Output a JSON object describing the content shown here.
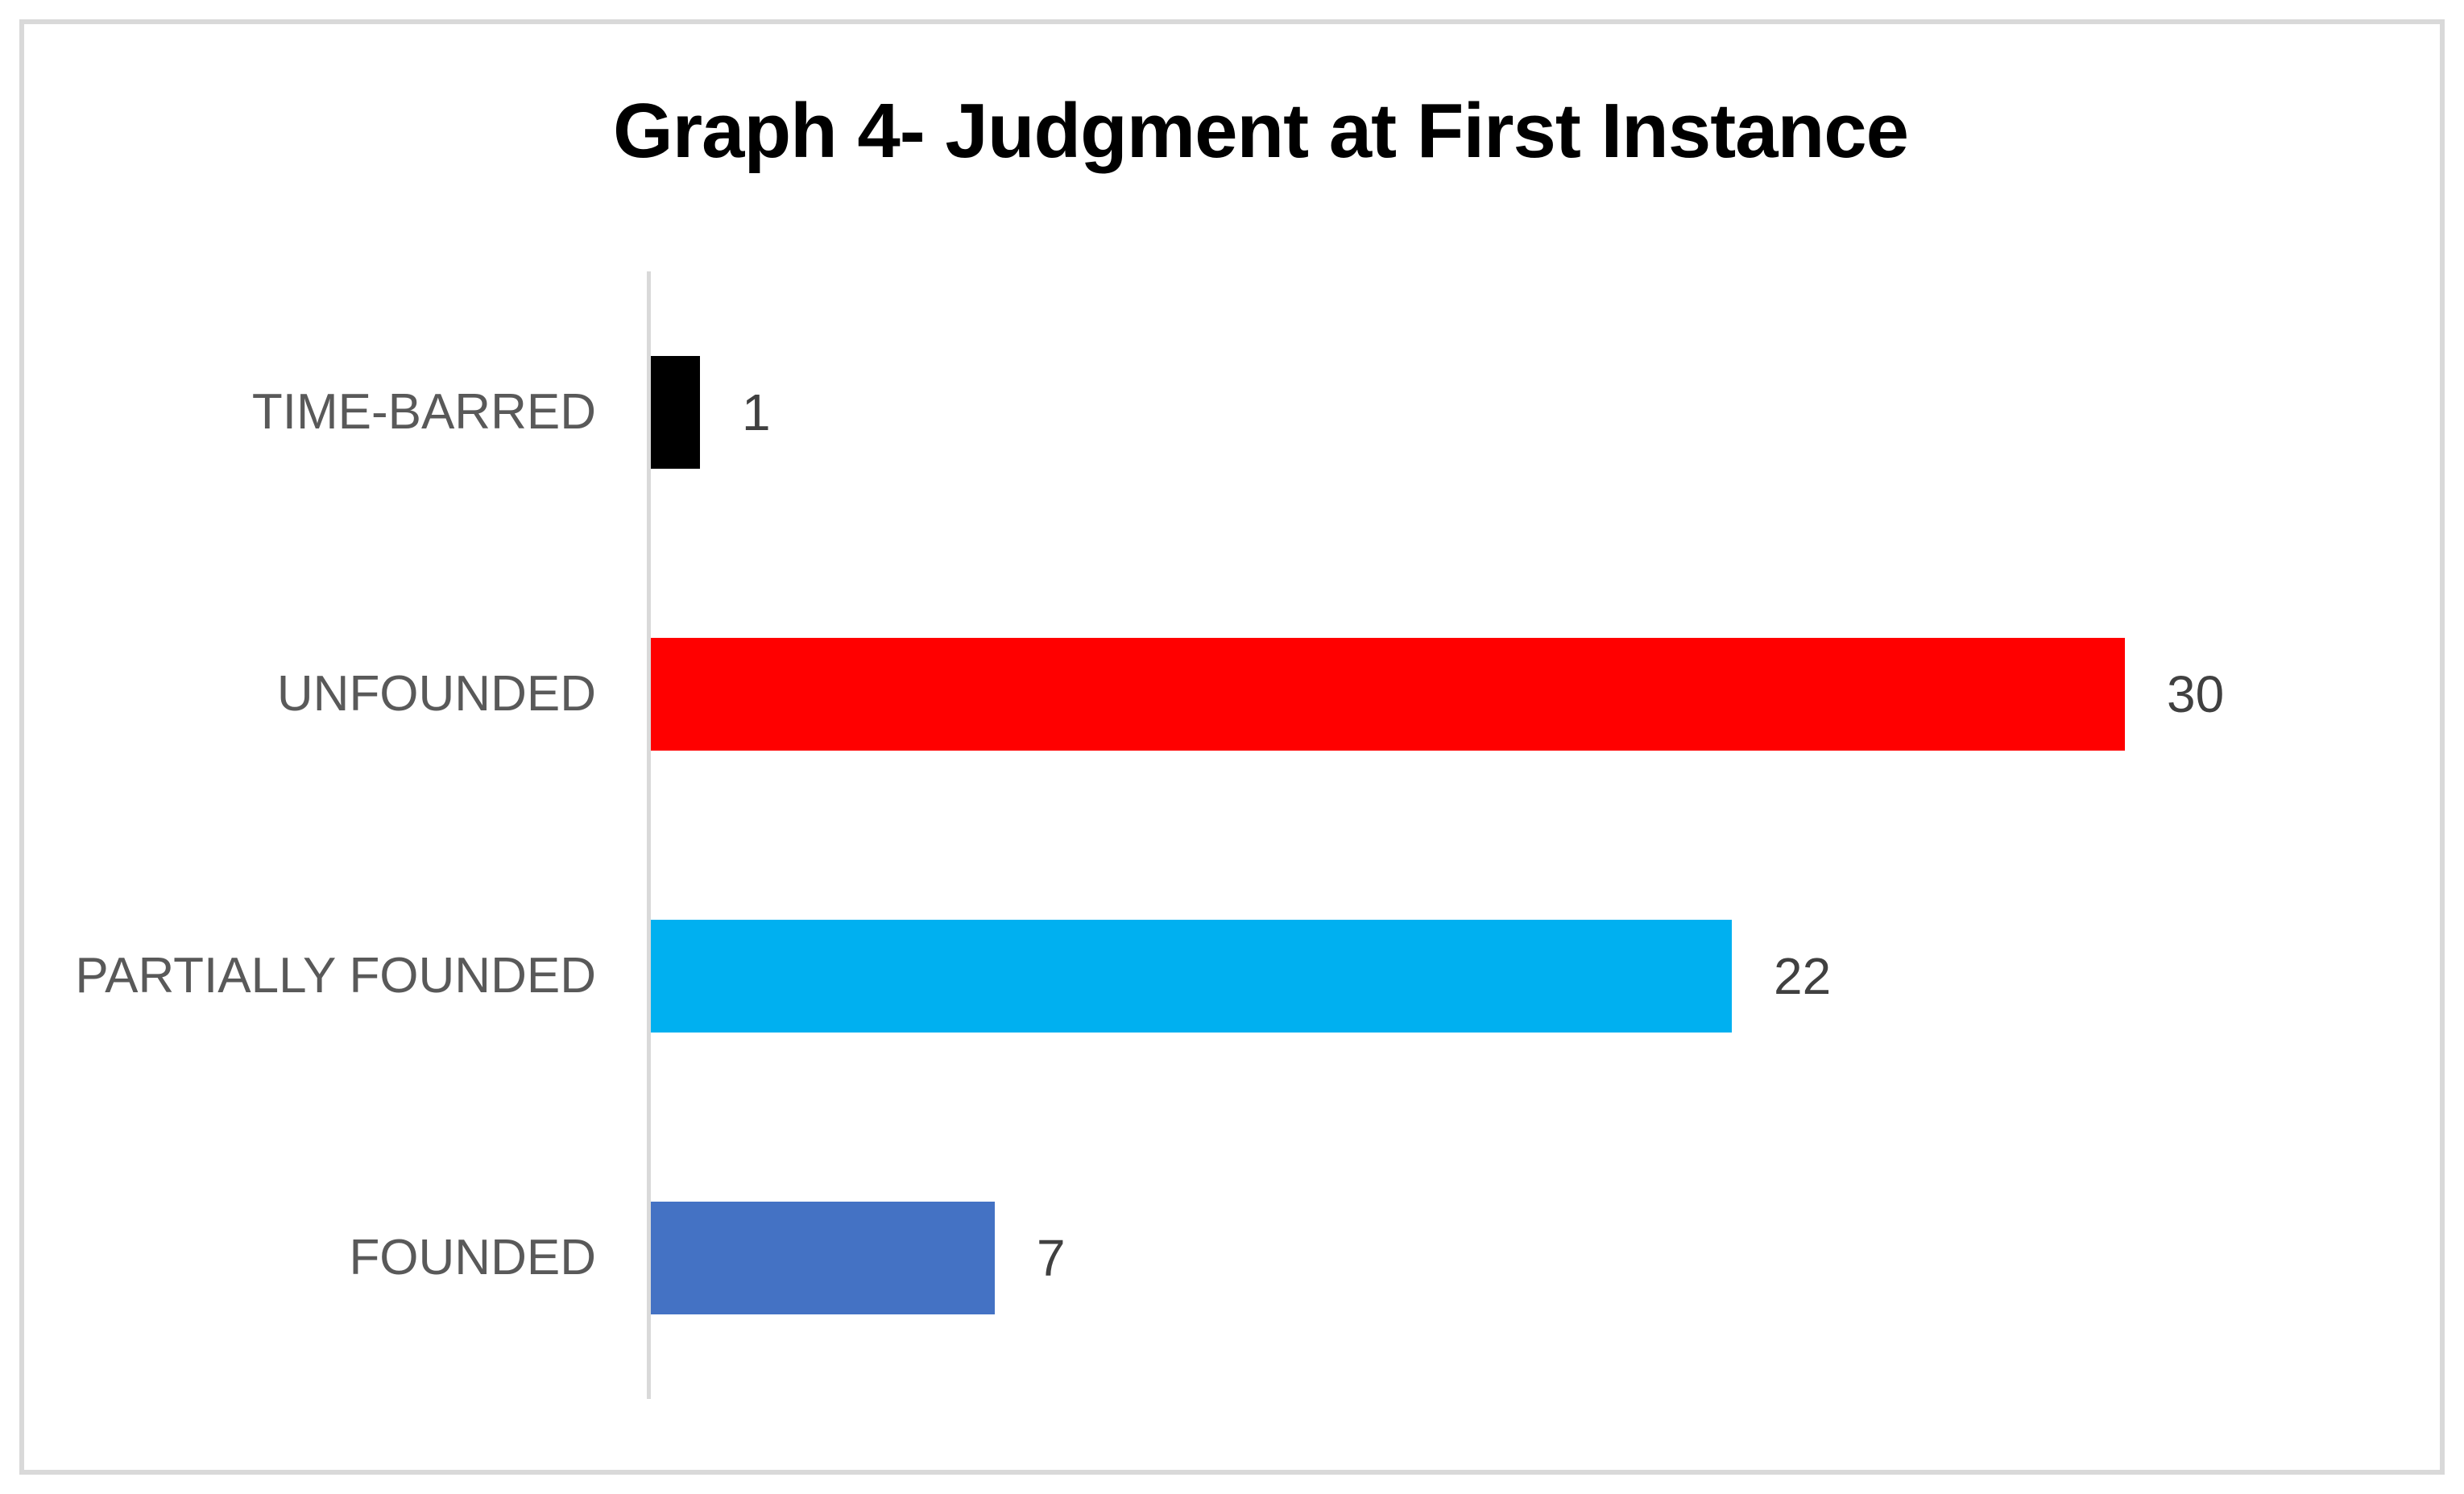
{
  "title": "Graph 4- Judgment at First Instance",
  "chart_data": {
    "type": "bar",
    "orientation": "horizontal",
    "title": "Graph 4- Judgment at First Instance",
    "categories": [
      "TIME-BARRED",
      "UNFOUNDED",
      "PARTIALLY FOUNDED",
      "FOUNDED"
    ],
    "values": [
      1,
      30,
      22,
      7
    ],
    "data_labels": [
      "1",
      "30",
      "22",
      "7"
    ],
    "series": [
      {
        "name": "Judgment at First Instance",
        "values": [
          1,
          30,
          22,
          7
        ]
      }
    ],
    "bar_colors": [
      "#000000",
      "#ff0000",
      "#00b0f0",
      "#4472c4"
    ],
    "xlim": [
      0,
      30
    ],
    "grid": false,
    "legend": false,
    "x_axis_visible": false,
    "y_axis_line_color": "#d9d9d9",
    "category_label_color": "#595959",
    "value_label_color": "#404040",
    "title_color": "#000000",
    "frame_border_color": "#d9d9d9",
    "background_color": "#ffffff"
  }
}
